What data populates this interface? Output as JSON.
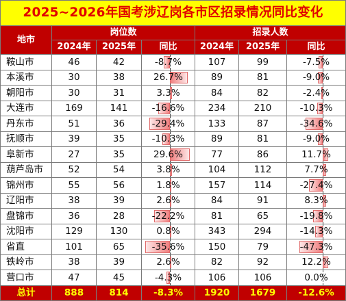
{
  "title": "2025~2026年国考涉辽岗各市区招录情况同比变化",
  "headers": {
    "area": "地市",
    "group1": "岗位数",
    "group2": "招录人数",
    "col_2024": "2024年",
    "col_2025": "2025年",
    "col_yoy": "同比"
  },
  "rows": [
    {
      "name": "鞍山市",
      "p24": "46",
      "p25": "42",
      "py": "-8.7%",
      "pv": -8.7,
      "h24": "107",
      "h25": "99",
      "hy": "-7.5%",
      "hv": -7.5
    },
    {
      "name": "本溪市",
      "p24": "30",
      "p25": "38",
      "py": "26.7%",
      "pv": 26.7,
      "h24": "89",
      "h25": "81",
      "hy": "-9.0%",
      "hv": -9.0
    },
    {
      "name": "朝阳市",
      "p24": "30",
      "p25": "31",
      "py": "3.3%",
      "pv": 3.3,
      "h24": "84",
      "h25": "82",
      "hy": "-2.4%",
      "hv": -2.4
    },
    {
      "name": "大连市",
      "p24": "169",
      "p25": "141",
      "py": "-16.6%",
      "pv": -16.6,
      "h24": "234",
      "h25": "210",
      "hy": "-10.3%",
      "hv": -10.3
    },
    {
      "name": "丹东市",
      "p24": "51",
      "p25": "36",
      "py": "-29.4%",
      "pv": -29.4,
      "h24": "133",
      "h25": "87",
      "hy": "-34.6%",
      "hv": -34.6
    },
    {
      "name": "抚顺市",
      "p24": "39",
      "p25": "35",
      "py": "-10.3%",
      "pv": -10.3,
      "h24": "89",
      "h25": "81",
      "hy": "-9.0%",
      "hv": -9.0
    },
    {
      "name": "阜新市",
      "p24": "27",
      "p25": "35",
      "py": "29.6%",
      "pv": 29.6,
      "h24": "77",
      "h25": "86",
      "hy": "11.7%",
      "hv": 11.7
    },
    {
      "name": "葫芦岛市",
      "p24": "52",
      "p25": "54",
      "py": "3.8%",
      "pv": 3.8,
      "h24": "104",
      "h25": "112",
      "hy": "7.7%",
      "hv": 7.7
    },
    {
      "name": "锦州市",
      "p24": "55",
      "p25": "56",
      "py": "1.8%",
      "pv": 1.8,
      "h24": "157",
      "h25": "114",
      "hy": "-27.4%",
      "hv": -27.4
    },
    {
      "name": "辽阳市",
      "p24": "38",
      "p25": "39",
      "py": "2.6%",
      "pv": 2.6,
      "h24": "84",
      "h25": "91",
      "hy": "8.3%",
      "hv": 8.3
    },
    {
      "name": "盘锦市",
      "p24": "36",
      "p25": "28",
      "py": "-22.2%",
      "pv": -22.2,
      "h24": "81",
      "h25": "65",
      "hy": "-19.8%",
      "hv": -19.8
    },
    {
      "name": "沈阳市",
      "p24": "129",
      "p25": "130",
      "py": "0.8%",
      "pv": 0.8,
      "h24": "343",
      "h25": "294",
      "hy": "-14.3%",
      "hv": -14.3
    },
    {
      "name": "省直",
      "p24": "101",
      "p25": "65",
      "py": "-35.6%",
      "pv": -35.6,
      "h24": "150",
      "h25": "79",
      "hy": "-47.3%",
      "hv": -47.3
    },
    {
      "name": "铁岭市",
      "p24": "38",
      "p25": "39",
      "py": "2.6%",
      "pv": 2.6,
      "h24": "82",
      "h25": "92",
      "hy": "12.2%",
      "hv": 12.2
    },
    {
      "name": "营口市",
      "p24": "47",
      "p25": "45",
      "py": "-4.3%",
      "pv": -4.3,
      "h24": "106",
      "h25": "106",
      "hy": "0.0%",
      "hv": 0.0
    }
  ],
  "total": {
    "name": "总计",
    "p24": "888",
    "p25": "814",
    "py": "-8.3%",
    "h24": "1920",
    "h25": "1679",
    "hy": "-12.6%"
  },
  "colors": {
    "title_bg": "#ffff00",
    "title_text": "#e00000",
    "header_bg": "#c00000",
    "header_text": "#ffffff",
    "total_text": "#ffff00",
    "bar": "#f08080"
  }
}
